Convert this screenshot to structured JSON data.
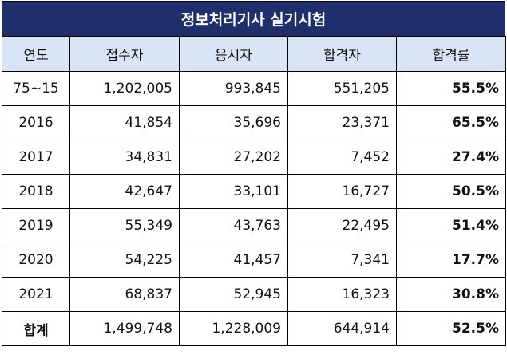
{
  "title": "정보처리기사 실기시험",
  "headers": [
    "연도",
    "접수자",
    "응시자",
    "합격자",
    "합격률"
  ],
  "rows": [
    {
      "year": "75~15",
      "applicants": "1,202,005",
      "examinees": "993,845",
      "passers": "551,205",
      "rate": "55.5%"
    },
    {
      "year": "2016",
      "applicants": "41,854",
      "examinees": "35,696",
      "passers": "23,371",
      "rate": "65.5%"
    },
    {
      "year": "2017",
      "applicants": "34,831",
      "examinees": "27,202",
      "passers": "7,452",
      "rate": "27.4%"
    },
    {
      "year": "2018",
      "applicants": "42,647",
      "examinees": "33,101",
      "passers": "16,727",
      "rate": "50.5%"
    },
    {
      "year": "2019",
      "applicants": "55,349",
      "examinees": "43,763",
      "passers": "22,495",
      "rate": "51.4%"
    },
    {
      "year": "2020",
      "applicants": "54,225",
      "examinees": "41,457",
      "passers": "7,341",
      "rate": "17.7%"
    },
    {
      "year": "2021",
      "applicants": "68,837",
      "examinees": "52,945",
      "passers": "16,323",
      "rate": "30.8%"
    }
  ],
  "total": {
    "year": "합계",
    "applicants": "1,499,748",
    "examinees": "1,228,009",
    "passers": "644,914",
    "rate": "52.5%"
  },
  "colors": {
    "title_bg": "#1f2f6b",
    "header_bg": "#d9e4f5"
  }
}
